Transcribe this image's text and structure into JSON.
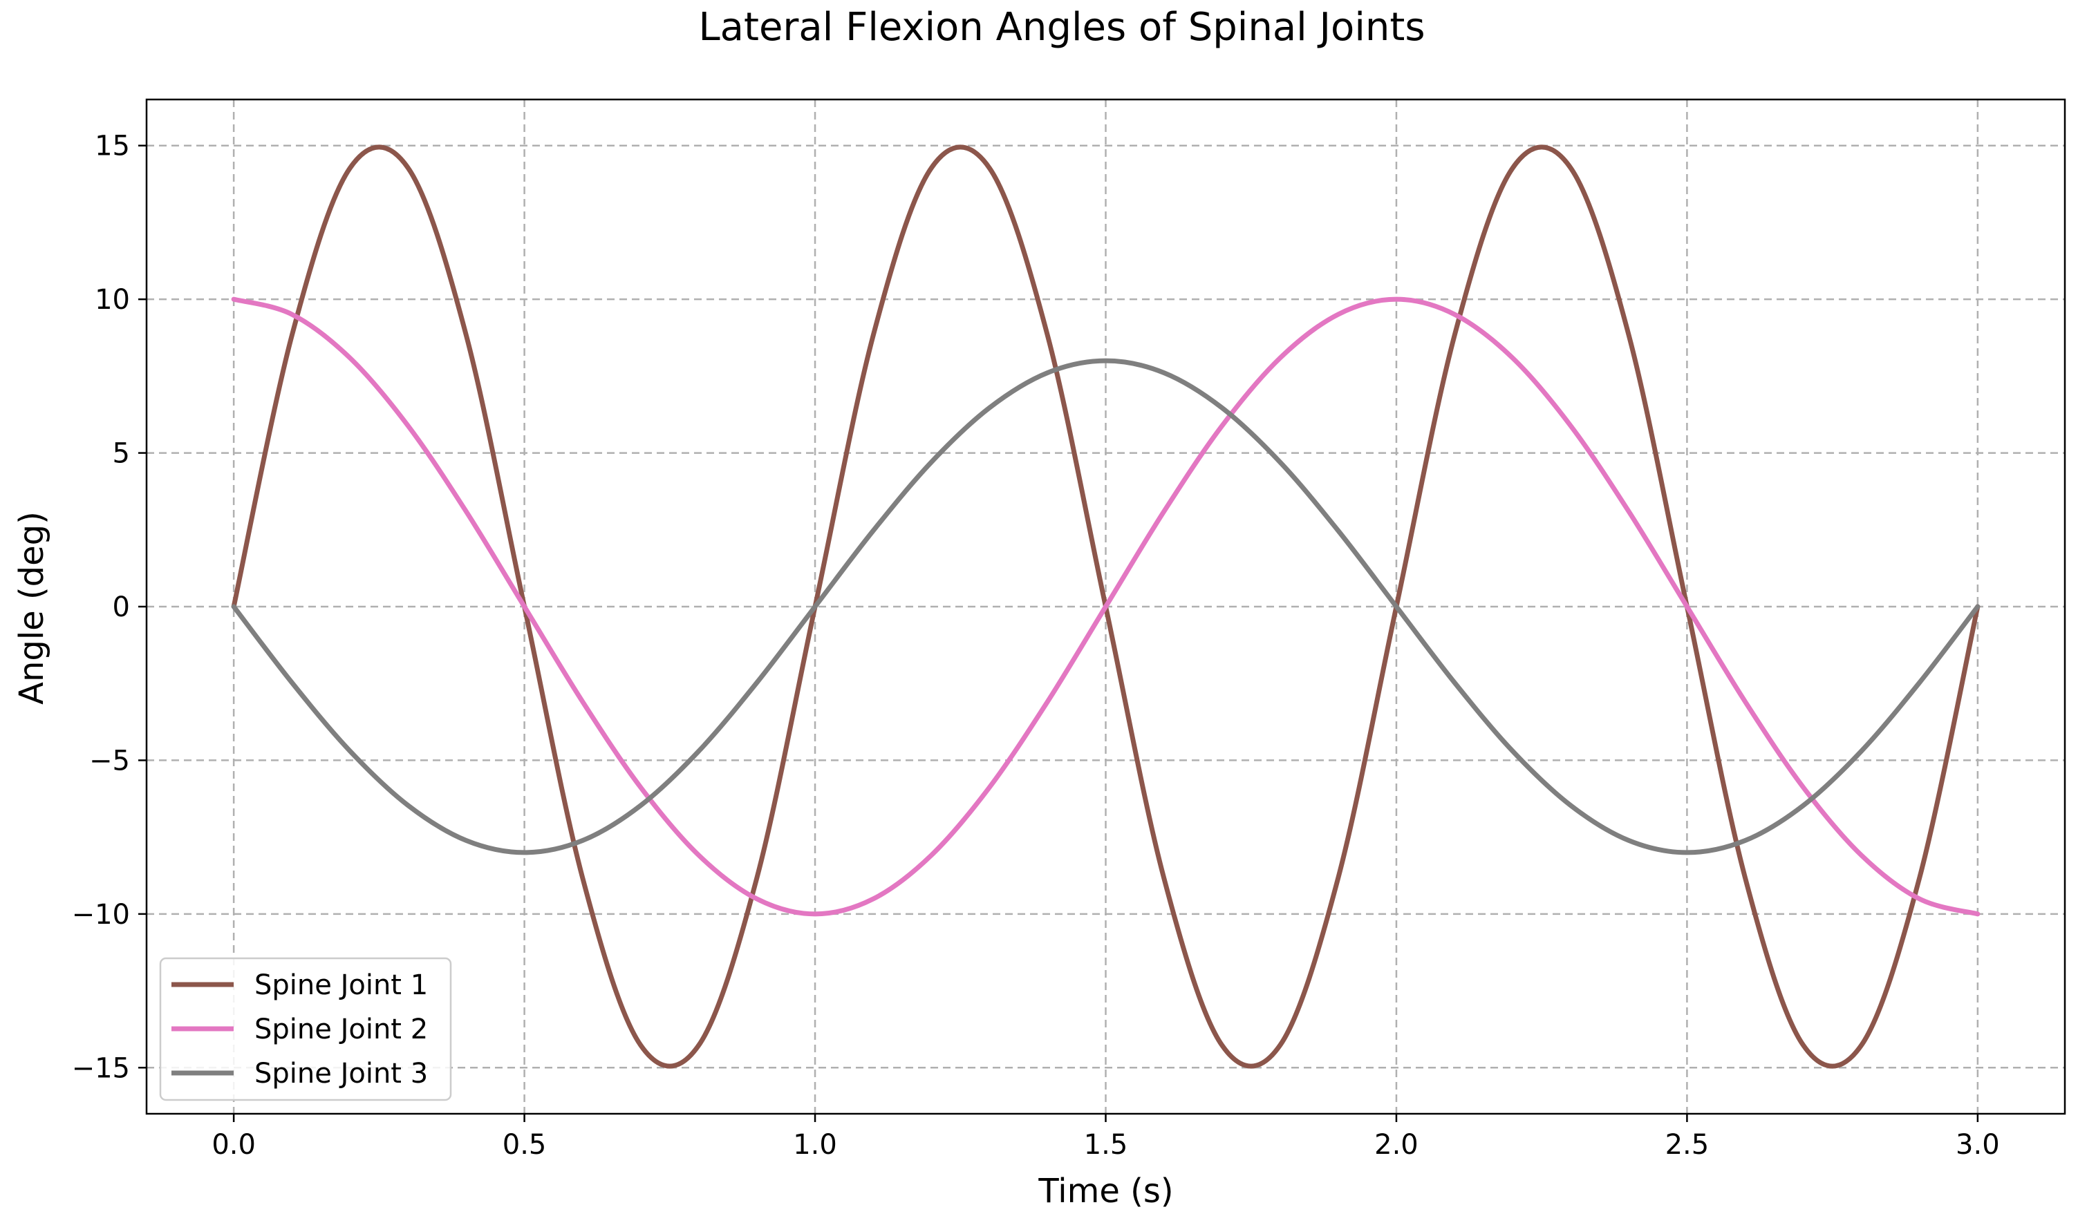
{
  "chart_data": {
    "type": "line",
    "title": "Lateral Flexion Angles of Spinal Joints",
    "xlabel": "Time (s)",
    "ylabel": "Angle (deg)",
    "xlim": [
      -0.15,
      3.15
    ],
    "ylim": [
      -16.5,
      16.5
    ],
    "x_ticks": [
      0.0,
      0.5,
      1.0,
      1.5,
      2.0,
      2.5,
      3.0
    ],
    "x_tick_labels": [
      "0.0",
      "0.5",
      "1.0",
      "1.5",
      "2.0",
      "2.5",
      "3.0"
    ],
    "y_ticks": [
      -15,
      -10,
      -5,
      0,
      5,
      10,
      15
    ],
    "y_tick_labels": [
      "−15",
      "−10",
      "−5",
      "0",
      "5",
      "10",
      "15"
    ],
    "grid": true,
    "legend_position": "lower-left",
    "x": [
      0.0,
      0.1,
      0.2,
      0.3,
      0.4,
      0.5,
      0.6,
      0.7,
      0.8,
      0.9,
      1.0,
      1.1,
      1.2,
      1.3,
      1.4,
      1.5,
      1.6,
      1.7,
      1.8,
      1.9,
      2.0,
      2.1,
      2.2,
      2.3,
      2.4,
      2.5,
      2.6,
      2.7,
      2.8,
      2.9,
      3.0
    ],
    "series": [
      {
        "name": "Spine Joint 1",
        "color": "#8c564b",
        "values": [
          0.0,
          8.82,
          14.27,
          14.27,
          8.82,
          0.0,
          -8.82,
          -14.27,
          -14.27,
          -8.82,
          0.0,
          8.82,
          14.27,
          14.27,
          8.82,
          0.0,
          -8.82,
          -14.27,
          -14.27,
          -8.82,
          0.0,
          8.82,
          14.27,
          14.27,
          8.82,
          0.0,
          -8.82,
          -14.27,
          -14.27,
          -8.82,
          0.0
        ]
      },
      {
        "name": "Spine Joint 2",
        "color": "#e377c2",
        "values": [
          10.0,
          9.51,
          8.09,
          5.88,
          3.09,
          0.0,
          -3.09,
          -5.88,
          -8.09,
          -9.51,
          -10.0,
          -9.51,
          -8.09,
          -5.88,
          -3.09,
          0.0,
          3.09,
          5.88,
          8.09,
          9.51,
          10.0,
          9.51,
          8.09,
          5.88,
          3.09,
          0.0,
          -3.09,
          -5.88,
          -8.09,
          -9.51,
          -10.0
        ]
      },
      {
        "name": "Spine Joint 3",
        "color": "#7f7f7f",
        "values": [
          0.0,
          -2.47,
          -4.7,
          -6.47,
          -7.61,
          -8.0,
          -7.61,
          -6.47,
          -4.7,
          -2.47,
          0.0,
          2.47,
          4.7,
          6.47,
          7.61,
          8.0,
          7.61,
          6.47,
          4.7,
          2.47,
          0.0,
          -2.47,
          -4.7,
          -6.47,
          -7.61,
          -8.0,
          -7.61,
          -6.47,
          -4.7,
          -2.47,
          0.0
        ]
      }
    ]
  }
}
